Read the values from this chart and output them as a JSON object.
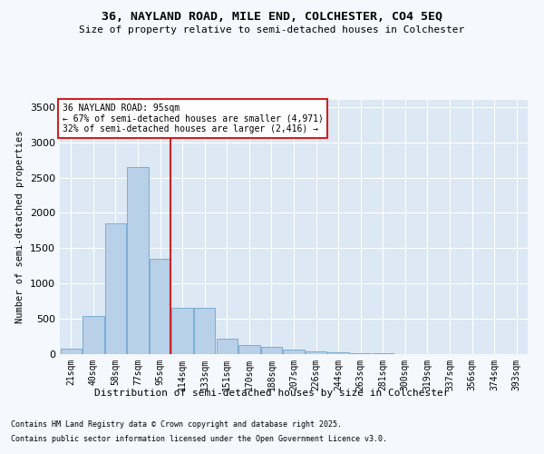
{
  "title_line1": "36, NAYLAND ROAD, MILE END, COLCHESTER, CO4 5EQ",
  "title_line2": "Size of property relative to semi-detached houses in Colchester",
  "xlabel": "Distribution of semi-detached houses by size in Colchester",
  "ylabel": "Number of semi-detached properties",
  "footnote1": "Contains HM Land Registry data © Crown copyright and database right 2025.",
  "footnote2": "Contains public sector information licensed under the Open Government Licence v3.0.",
  "annotation_title": "36 NAYLAND ROAD: 95sqm",
  "annotation_line1": "← 67% of semi-detached houses are smaller (4,971)",
  "annotation_line2": "32% of semi-detached houses are larger (2,416) →",
  "bar_color": "#b8d0e8",
  "bar_edgecolor": "#7aadd4",
  "vline_color": "#cc2222",
  "annotation_box_edgecolor": "#cc2222",
  "fig_facecolor": "#f5f8fc",
  "ax_facecolor": "#dce8f4",
  "grid_color": "#ffffff",
  "categories": [
    "21sqm",
    "40sqm",
    "58sqm",
    "77sqm",
    "95sqm",
    "114sqm",
    "133sqm",
    "151sqm",
    "170sqm",
    "188sqm",
    "207sqm",
    "226sqm",
    "244sqm",
    "263sqm",
    "281sqm",
    "300sqm",
    "319sqm",
    "337sqm",
    "356sqm",
    "374sqm",
    "393sqm"
  ],
  "values": [
    80,
    540,
    1850,
    2650,
    1350,
    650,
    650,
    215,
    125,
    100,
    65,
    35,
    22,
    15,
    10,
    6,
    3,
    2,
    1,
    1,
    0
  ],
  "ylim": [
    0,
    3600
  ],
  "yticks": [
    0,
    500,
    1000,
    1500,
    2000,
    2500,
    3000,
    3500
  ],
  "vline_bar_index": 4,
  "prop_label_idx": 4
}
